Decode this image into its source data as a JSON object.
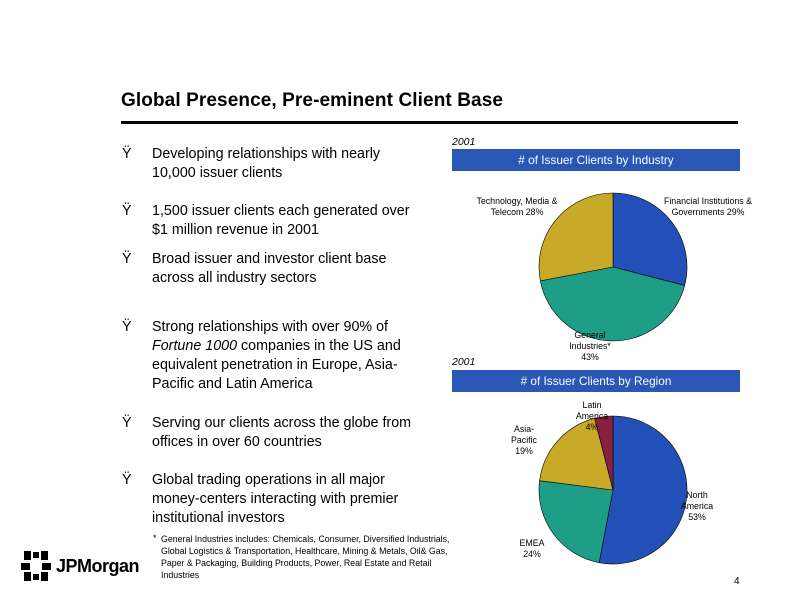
{
  "slide": {
    "title": "Global Presence, Pre-eminent Client Base",
    "page_number": "4",
    "logo_text": "JPMorgan"
  },
  "bullets": [
    {
      "mark": "Ÿ",
      "lines": [
        "Developing relationships with nearly",
        "10,000 issuer clients"
      ]
    },
    {
      "mark": "Ÿ",
      "lines": [
        "1,500 issuer clients each generated over",
        "$1 million revenue in 2001"
      ]
    },
    {
      "mark": "Ÿ",
      "lines": [
        "Broad issuer and investor client base",
        "across all industry sectors"
      ]
    },
    {
      "mark": "Ÿ",
      "lines_rich": [
        [
          {
            "t": "Strong relationships with over 90% of"
          }
        ],
        [
          {
            "t": "Fortune 1000",
            "i": true
          },
          {
            "t": " companies in the US and"
          }
        ],
        [
          {
            "t": "equivalent penetration in Europe, Asia-"
          }
        ],
        [
          {
            "t": "Pacific and Latin America"
          }
        ]
      ]
    },
    {
      "mark": "Ÿ",
      "lines": [
        "Serving our clients across the globe from",
        "offices in over 60 countries"
      ]
    },
    {
      "mark": "Ÿ",
      "lines": [
        "Global trading operations in all major",
        "money-centers interacting with premier",
        "institutional investors"
      ]
    }
  ],
  "footnote": {
    "star": "*",
    "text": "General Industries includes: Chemicals, Consumer, Diversified Industrials, Global Logistics & Transportation, Healthcare, Mining & Metals, Oil& Gas, Paper & Packaging, Building Products, Power, Real Estate and Retail Industries"
  },
  "chart_data": [
    {
      "type": "pie",
      "year": "2001",
      "title": "# of Issuer Clients by Industry",
      "slices": [
        {
          "label": "Financial Institutions & Governments",
          "value": 29,
          "display": "Financial Institutions &\nGovernments 29%",
          "color": "#2250b8"
        },
        {
          "label": "General Industries*",
          "value": 43,
          "display": "General\nIndustries*\n43%",
          "color": "#1e9e86"
        },
        {
          "label": "Technology, Media & Telecom",
          "value": 28,
          "display": "Technology, Media &\nTelecom 28%",
          "color": "#c9a928"
        }
      ]
    },
    {
      "type": "pie",
      "year": "2001",
      "title": "# of Issuer Clients by Region",
      "slices": [
        {
          "label": "North America",
          "value": 53,
          "display": "North\nAmerica\n53%",
          "color": "#2250b8"
        },
        {
          "label": "EMEA",
          "value": 24,
          "display": "EMEA\n24%",
          "color": "#1e9e86"
        },
        {
          "label": "Asia-Pacific",
          "value": 19,
          "display": "Asia-\nPacific\n19%",
          "color": "#c9a928"
        },
        {
          "label": "Latin America",
          "value": 4,
          "display": "Latin\nAmerica\n4%",
          "color": "#8a2040"
        }
      ]
    }
  ]
}
